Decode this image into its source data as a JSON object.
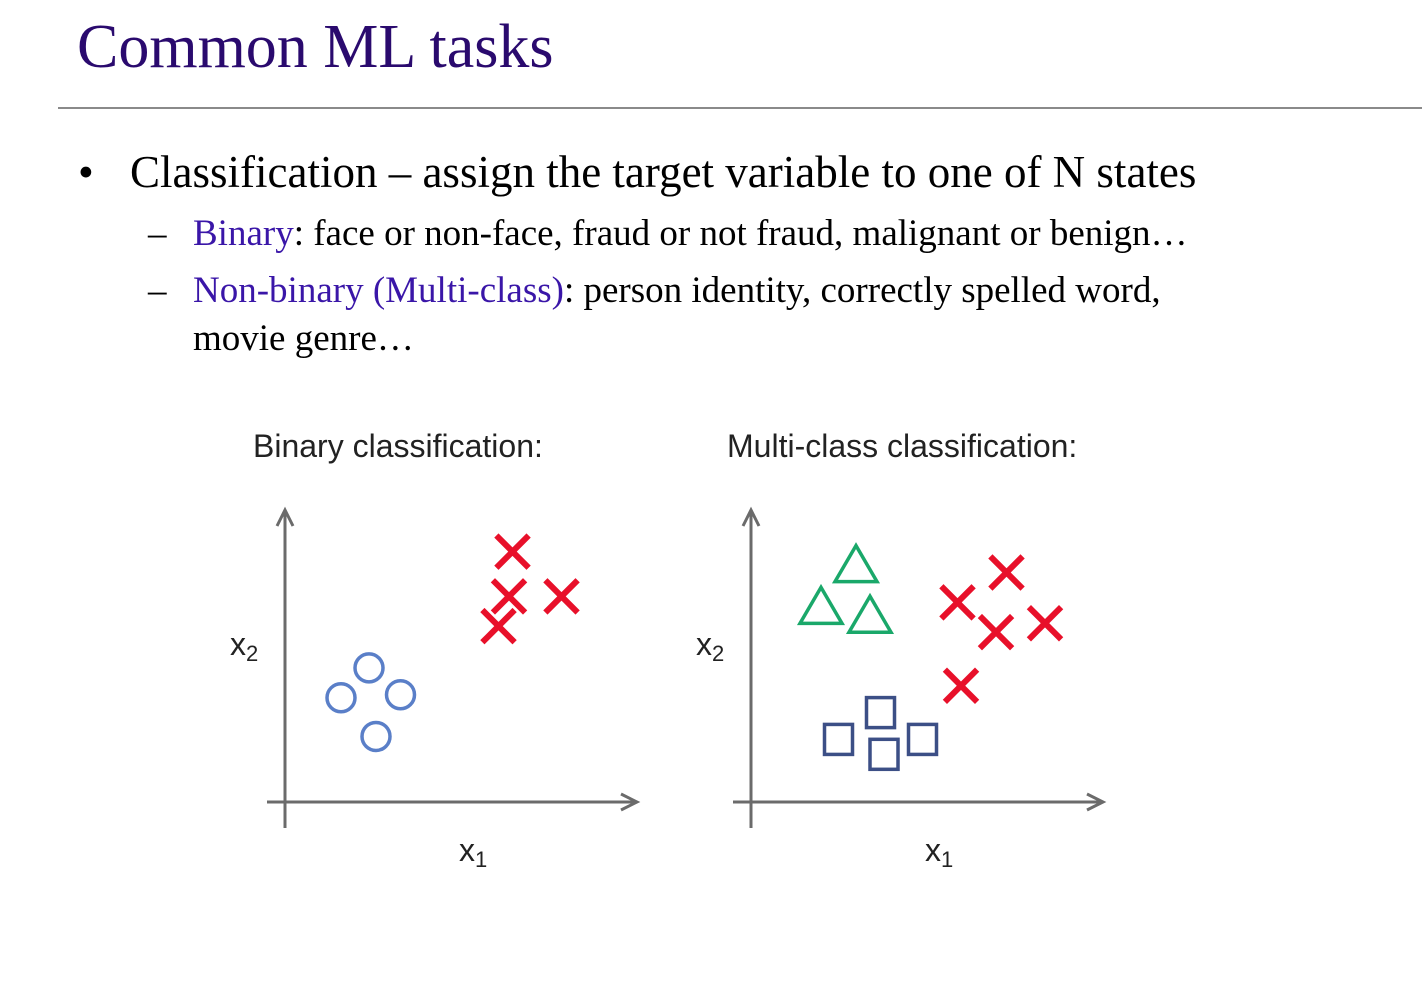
{
  "slide": {
    "title": "Common ML tasks",
    "bullet": {
      "marker": "•",
      "text": "Classification – assign the target variable to one of N states"
    },
    "subbullets": [
      {
        "marker": "–",
        "term": "Binary",
        "rest": ": face or non-face, fraud or not fraud, malignant or benign…"
      },
      {
        "marker": "–",
        "term": "Non-binary (Multi-class)",
        "rest": ": person identity, correctly spelled word,",
        "rest_line2": "movie genre…"
      }
    ]
  },
  "colors": {
    "title": "#2a0a6e",
    "term": "#3a16a8",
    "axis": "#6b6b6b",
    "cross": "#e8102a",
    "circle": "#5a7fc8",
    "triangle": "#1aa86a",
    "square": "#3c4f86"
  },
  "chart_data": [
    {
      "type": "scatter",
      "title": "Binary classification:",
      "xlabel": "x",
      "xlabel_sub": "1",
      "ylabel": "x",
      "ylabel_sub": "2",
      "xlim": [
        0,
        10
      ],
      "ylim": [
        0,
        10
      ],
      "series": [
        {
          "marker": "circle",
          "color": "#5a7fc8",
          "points": [
            [
              2.4,
              4.5
            ],
            [
              1.6,
              3.5
            ],
            [
              3.3,
              3.6
            ],
            [
              2.6,
              2.2
            ]
          ]
        },
        {
          "marker": "cross",
          "color": "#e8102a",
          "points": [
            [
              6.5,
              8.4
            ],
            [
              6.4,
              6.9
            ],
            [
              7.9,
              6.9
            ],
            [
              6.1,
              5.9
            ]
          ]
        }
      ]
    },
    {
      "type": "scatter",
      "title": "Multi-class classification:",
      "xlabel": "x",
      "xlabel_sub": "1",
      "ylabel": "x",
      "ylabel_sub": "2",
      "xlim": [
        0,
        10
      ],
      "ylim": [
        0,
        10
      ],
      "series": [
        {
          "marker": "triangle",
          "color": "#1aa86a",
          "points": [
            [
              3.0,
              8.0
            ],
            [
              2.0,
              6.6
            ],
            [
              3.4,
              6.3
            ]
          ]
        },
        {
          "marker": "cross",
          "color": "#e8102a",
          "points": [
            [
              7.3,
              7.7
            ],
            [
              5.9,
              6.7
            ],
            [
              7.0,
              5.7
            ],
            [
              8.4,
              6.0
            ],
            [
              6.0,
              3.9
            ]
          ]
        },
        {
          "marker": "square",
          "color": "#3c4f86",
          "points": [
            [
              3.7,
              3.0
            ],
            [
              2.5,
              2.1
            ],
            [
              3.8,
              1.6
            ],
            [
              4.9,
              2.1
            ]
          ]
        }
      ]
    }
  ]
}
